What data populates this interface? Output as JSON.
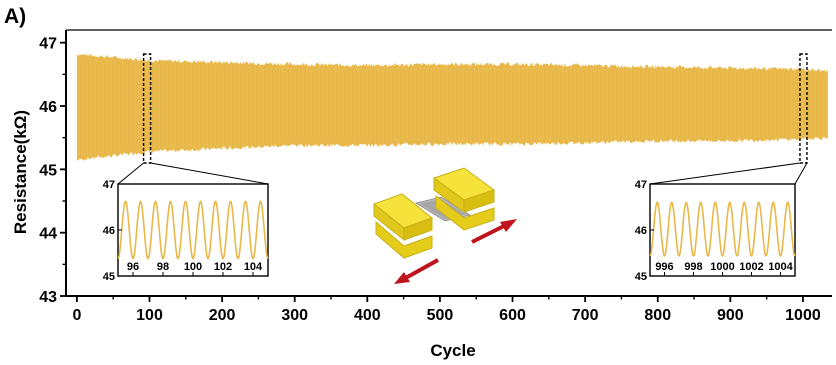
{
  "panel_label": "A)",
  "colors": {
    "signal": "#E8B84A",
    "signal_light": "#F0C868",
    "device_yellow": "#F2DA1E",
    "arrow": "#C0141C",
    "axis": "#000000"
  },
  "chart_data": {
    "type": "area",
    "xlabel": "Cycle",
    "ylabel": "Resistance(kΩ)",
    "xlim": [
      -15,
      1040
    ],
    "ylim": [
      43,
      47.2
    ],
    "xticks": [
      0,
      100,
      200,
      300,
      400,
      500,
      600,
      700,
      800,
      900,
      1000
    ],
    "xtick_labels": [
      "0",
      "100",
      "200",
      "300",
      "400",
      "500",
      "600",
      "700",
      "800",
      "900",
      "1000"
    ],
    "yticks": [
      43,
      44,
      45,
      46,
      47
    ],
    "ytick_labels": [
      "43",
      "44",
      "45",
      "46",
      "47"
    ],
    "envelope": {
      "x": [
        0,
        100,
        200,
        300,
        400,
        500,
        600,
        700,
        800,
        900,
        1000,
        1035
      ],
      "upper": [
        46.82,
        46.72,
        46.69,
        46.66,
        46.64,
        46.66,
        46.66,
        46.64,
        46.62,
        46.6,
        46.58,
        46.55
      ],
      "lower": [
        45.15,
        45.28,
        45.33,
        45.38,
        45.38,
        45.4,
        45.4,
        45.42,
        45.45,
        45.45,
        45.48,
        45.5
      ]
    },
    "highlight_windows": [
      96,
      1000
    ],
    "insets": [
      {
        "xlim": [
          95,
          105
        ],
        "ylim": [
          45,
          47
        ],
        "xticks": [
          96,
          98,
          100,
          102,
          104
        ],
        "xtick_labels": [
          "96",
          "98",
          "100",
          "102",
          "104"
        ],
        "yticks": [
          45,
          46,
          47
        ],
        "ytick_labels": [
          "45",
          "46",
          "47"
        ],
        "amplitude": 0.62,
        "mean": 46.0
      },
      {
        "xlim": [
          995,
          1005
        ],
        "ylim": [
          45,
          47
        ],
        "xticks": [
          996,
          998,
          1000,
          1002,
          1004
        ],
        "xtick_labels": [
          "996",
          "998",
          "1000",
          "1002",
          "1004"
        ],
        "yticks": [
          45,
          46,
          47
        ],
        "ytick_labels": [
          "45",
          "46",
          "47"
        ],
        "amplitude": 0.58,
        "mean": 46.02
      }
    ]
  }
}
